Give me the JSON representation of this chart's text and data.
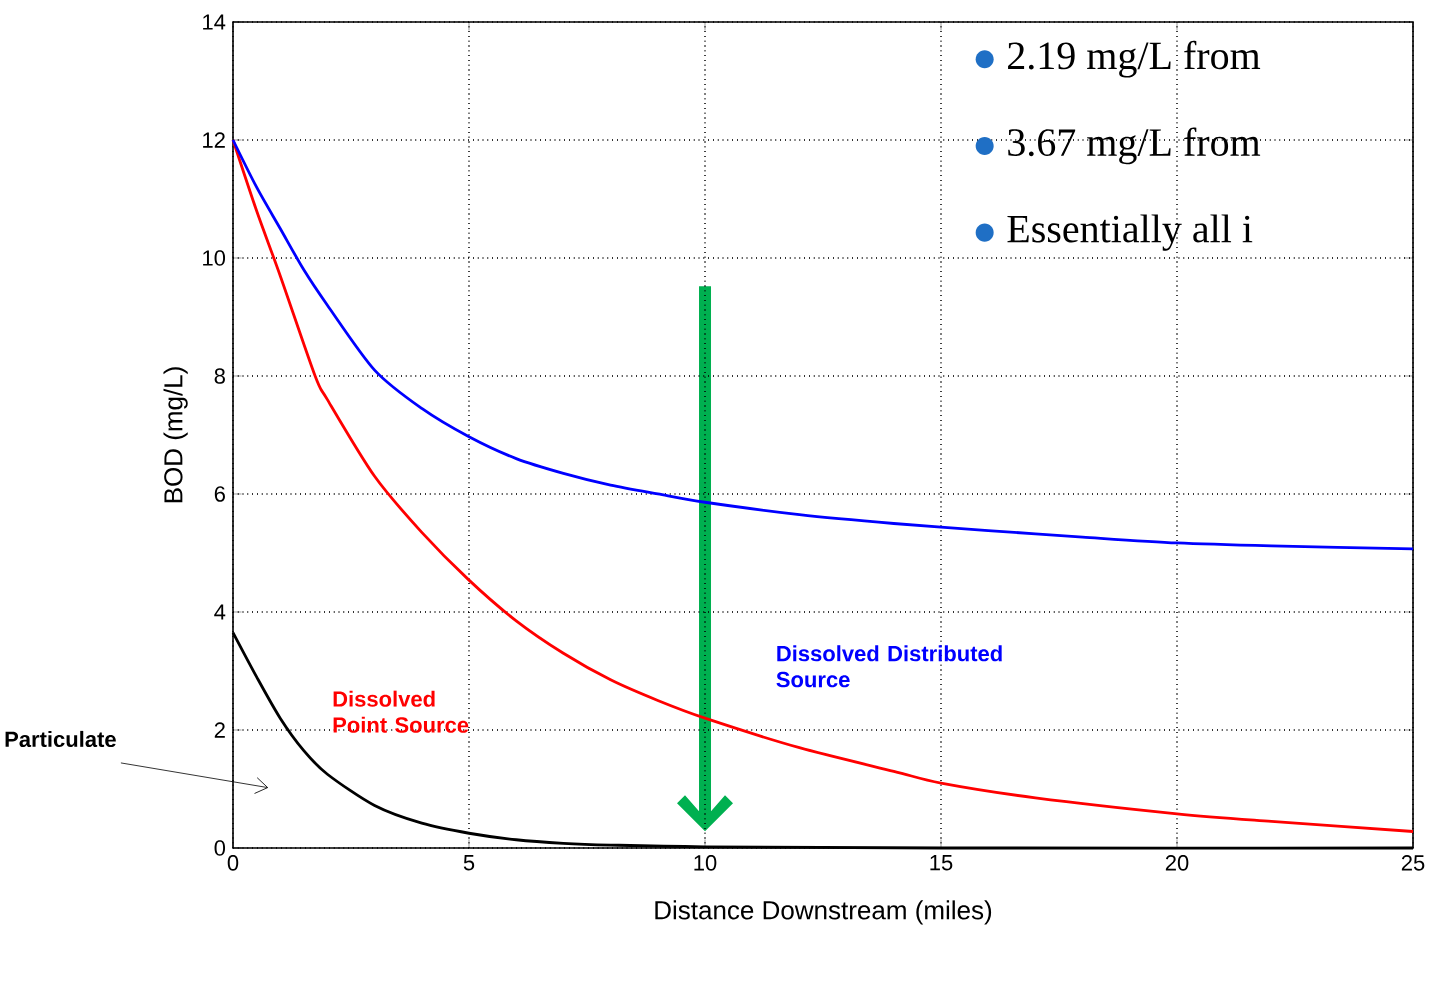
{
  "chart_data": {
    "type": "line",
    "xlabel": "Distance Downstream (miles)",
    "ylabel": "BOD (mg/L)",
    "xlim": [
      0,
      25
    ],
    "ylim": [
      0,
      14
    ],
    "xticks": [
      0,
      5,
      10,
      15,
      20,
      25
    ],
    "yticks": [
      0,
      2,
      4,
      6,
      8,
      10,
      12,
      14
    ],
    "grid": true,
    "marker": "none",
    "line_style": "solid",
    "series": [
      {
        "name": "Particulate",
        "color": "#000000",
        "x": [
          0,
          0.5,
          1,
          1.5,
          2,
          3,
          4,
          5,
          6,
          7,
          8,
          10,
          15,
          25
        ],
        "values": [
          3.65,
          2.9,
          2.2,
          1.65,
          1.25,
          0.72,
          0.42,
          0.25,
          0.14,
          0.08,
          0.05,
          0.02,
          0,
          0
        ]
      },
      {
        "name": "Dissolved Point Source",
        "color": "#ff0000",
        "x": [
          0,
          0.5,
          1,
          1.74,
          2,
          3,
          4,
          5,
          6,
          7,
          8,
          9,
          10,
          12,
          14,
          15,
          17,
          20,
          22,
          25
        ],
        "values": [
          12,
          10.8,
          9.7,
          8,
          7.6,
          6.3,
          5.35,
          4.54,
          3.85,
          3.3,
          2.85,
          2.5,
          2.2,
          1.7,
          1.3,
          1.1,
          0.85,
          0.58,
          0.45,
          0.28
        ]
      },
      {
        "name": "Dissolved Distributed Source",
        "color": "#0000ff",
        "x": [
          0,
          0.5,
          1,
          1.5,
          2,
          3,
          4,
          5,
          6,
          7,
          8,
          9,
          10,
          12,
          14,
          16,
          18,
          20,
          22,
          25
        ],
        "values": [
          12,
          11.2,
          10.5,
          9.8,
          9.2,
          8.1,
          7.45,
          6.97,
          6.6,
          6.35,
          6.15,
          6.0,
          5.86,
          5.65,
          5.5,
          5.38,
          5.27,
          5.17,
          5.12,
          5.07
        ]
      }
    ],
    "annotations": [
      "2.19 mg/L from",
      "3.67 mg/L from",
      "Essentially all i"
    ]
  }
}
